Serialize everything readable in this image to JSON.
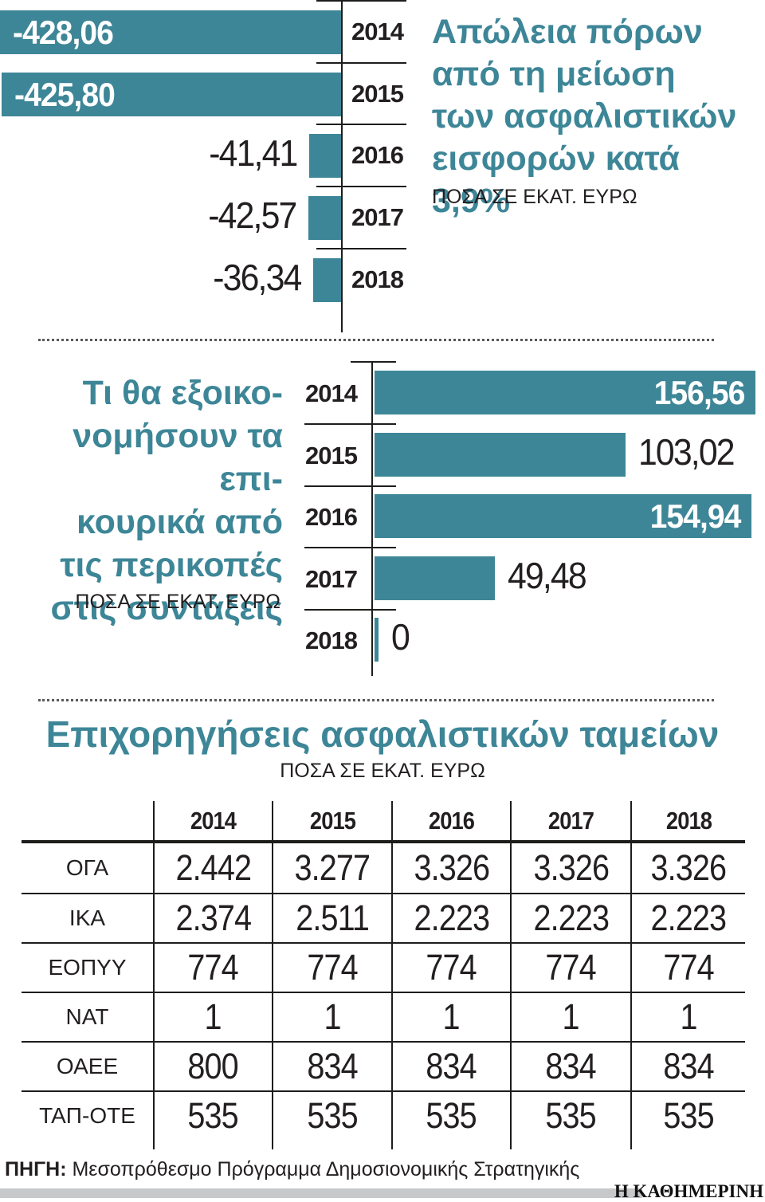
{
  "colors": {
    "teal": "#3d8697",
    "dark_text": "#231f20",
    "line": "#1d1d1b",
    "footer_gray": "#c7c8ca"
  },
  "chart_data": [
    {
      "type": "bar",
      "orientation": "horizontal",
      "bar_direction": "left",
      "title": "Απώλεια πόρων από τη μείωση των ασφαλιστικών εισφορών κατά 3,9%",
      "title_lines": [
        "Απώλεια πόρων",
        "από τη μείωση",
        "των ασφαλιστικών",
        "εισφορών κατά 3,9%"
      ],
      "subtitle": "ΠΟΣΑ ΣΕ ΕΚΑΤ. ΕΥΡΩ",
      "categories": [
        "2014",
        "2015",
        "2016",
        "2017",
        "2018"
      ],
      "values": [
        -428.06,
        -425.8,
        -41.41,
        -42.57,
        -36.34
      ],
      "value_labels": [
        "-428,06",
        "-425,80",
        "-41,41",
        "-42,57",
        "-36,34"
      ],
      "label_inside": [
        true,
        true,
        false,
        false,
        false
      ],
      "xlim": [
        -430,
        0
      ],
      "grid": false,
      "legend": "none"
    },
    {
      "type": "bar",
      "orientation": "horizontal",
      "bar_direction": "right",
      "title": "Τι θα εξοικονομήσουν τα επικουρικά από τις περικοπές στις συντάξεις",
      "title_lines": [
        "Τι θα εξοικο-",
        "νομήσουν τα επι-",
        "κουρικά από",
        "τις περικοπές",
        "στις συντάξεις"
      ],
      "subtitle": "ΠΟΣΑ ΣΕ ΕΚΑΤ. ΕΥΡΩ",
      "categories": [
        "2014",
        "2015",
        "2016",
        "2017",
        "2018"
      ],
      "values": [
        156.56,
        103.02,
        154.94,
        49.48,
        0
      ],
      "value_labels": [
        "156,56",
        "103,02",
        "154,94",
        "49,48",
        "0"
      ],
      "label_inside": [
        true,
        false,
        true,
        false,
        false
      ],
      "xlim": [
        0,
        157
      ],
      "grid": false,
      "legend": "none"
    },
    {
      "type": "table",
      "title": "Επιχορηγήσεις ασφαλιστικών ταμείων",
      "subtitle": "ΠΟΣΑ ΣΕ ΕΚΑΤ. ΕΥΡΩ",
      "columns": [
        "2014",
        "2015",
        "2016",
        "2017",
        "2018"
      ],
      "rows": [
        {
          "label": "ΟΓΑ",
          "values": [
            "2.442",
            "3.277",
            "3.326",
            "3.326",
            "3.326"
          ]
        },
        {
          "label": "ΙΚΑ",
          "values": [
            "2.374",
            "2.511",
            "2.223",
            "2.223",
            "2.223"
          ]
        },
        {
          "label": "ΕΟΠΥΥ",
          "values": [
            "774",
            "774",
            "774",
            "774",
            "774"
          ]
        },
        {
          "label": "ΝΑΤ",
          "values": [
            "1",
            "1",
            "1",
            "1",
            "1"
          ]
        },
        {
          "label": "ΟΑΕΕ",
          "values": [
            "800",
            "834",
            "834",
            "834",
            "834"
          ]
        },
        {
          "label": "ΤΑΠ-ΟΤΕ",
          "values": [
            "535",
            "535",
            "535",
            "535",
            "535"
          ]
        }
      ]
    }
  ],
  "source_label": "ΠΗΓΗ:",
  "source_text": "Μεσοπρόθεσμο Πρόγραμμα Δημοσιονομικής Στρατηγικής",
  "logo_text": "Η ΚΑΘΗΜΕΡΙΝΗ"
}
